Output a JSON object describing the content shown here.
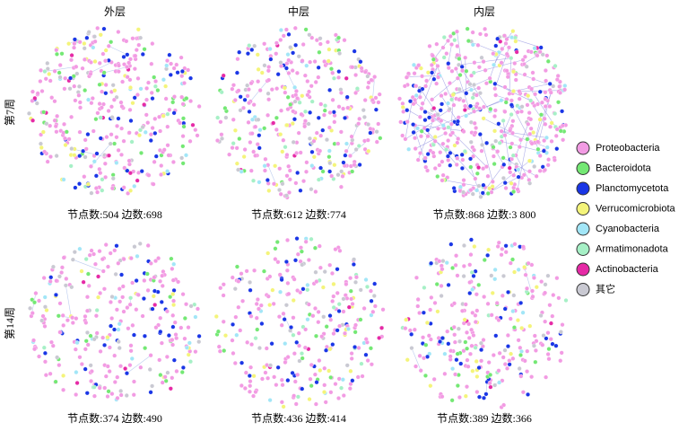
{
  "columns": [
    "外层",
    "中层",
    "内层"
  ],
  "rows": [
    {
      "label": "第7周",
      "captions": [
        "节点数:504  边数:698",
        "节点数:612  边数:774",
        "节点数:868  边数:3 800"
      ]
    },
    {
      "label": "第14周",
      "captions": [
        "节点数:374  边数:490",
        "节点数:436  边数:414",
        "节点数:389  边数:366"
      ]
    }
  ],
  "legend": [
    {
      "name": "Proteobacteria",
      "color": "#f29be3"
    },
    {
      "name": "Bacteroidota",
      "color": "#74e874"
    },
    {
      "name": "Planctomycetota",
      "color": "#1a36e6"
    },
    {
      "name": "Verrucomicrobiota",
      "color": "#f4f47a"
    },
    {
      "name": "Cyanobacteria",
      "color": "#a2e6f7"
    },
    {
      "name": "Armatimonadota",
      "color": "#a6f0c6"
    },
    {
      "name": "Actinobacteria",
      "color": "#e62aa6"
    },
    {
      "name": "其它",
      "color": "#c9c9d2"
    }
  ]
}
